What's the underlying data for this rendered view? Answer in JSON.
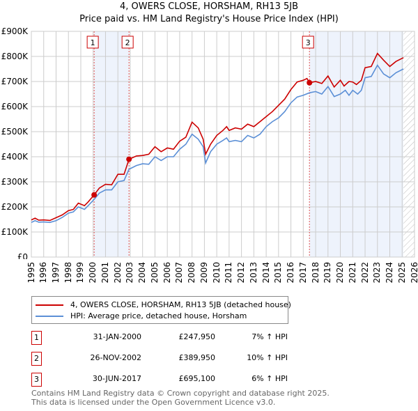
{
  "title": "4, OWERS CLOSE, HORSHAM, RH13 5JB",
  "subtitle": "Price paid vs. HM Land Registry's House Price Index (HPI)",
  "chart_data": {
    "type": "line",
    "ylim": [
      0,
      900000
    ],
    "xlim": [
      1995,
      2026
    ],
    "y_ticks": [
      {
        "v": 0,
        "label": "£0"
      },
      {
        "v": 100000,
        "label": "£100K"
      },
      {
        "v": 200000,
        "label": "£200K"
      },
      {
        "v": 300000,
        "label": "£300K"
      },
      {
        "v": 400000,
        "label": "£400K"
      },
      {
        "v": 500000,
        "label": "£500K"
      },
      {
        "v": 600000,
        "label": "£600K"
      },
      {
        "v": 700000,
        "label": "£700K"
      },
      {
        "v": 800000,
        "label": "£800K"
      },
      {
        "v": 900000,
        "label": "£900K"
      }
    ],
    "x_ticks": [
      "1995",
      "1996",
      "1997",
      "1998",
      "1999",
      "2000",
      "2001",
      "2002",
      "2003",
      "2004",
      "2005",
      "2006",
      "2007",
      "2008",
      "2009",
      "2010",
      "2011",
      "2012",
      "2013",
      "2014",
      "2015",
      "2016",
      "2017",
      "2018",
      "2019",
      "2020",
      "2021",
      "2022",
      "2023",
      "2024",
      "2025",
      "2026"
    ],
    "forecast_from": 2025.1,
    "shaded_periods": [
      [
        2000.08,
        2002.9
      ],
      [
        2017.5,
        2025.1
      ]
    ],
    "series": [
      {
        "name": "4, OWERS CLOSE, HORSHAM, RH13 5JB (detached house)",
        "color": "#cc0000",
        "points": [
          [
            1995,
            148
          ],
          [
            1995.3,
            155
          ],
          [
            1995.6,
            147
          ],
          [
            1996,
            148
          ],
          [
            1996.5,
            146
          ],
          [
            1997,
            157
          ],
          [
            1997.5,
            168
          ],
          [
            1998,
            185
          ],
          [
            1998.4,
            190
          ],
          [
            1998.8,
            215
          ],
          [
            1999.3,
            205
          ],
          [
            1999.6,
            220
          ],
          [
            2000.08,
            248
          ],
          [
            2000.5,
            275
          ],
          [
            2001,
            290
          ],
          [
            2001.5,
            288
          ],
          [
            2002,
            330
          ],
          [
            2002.5,
            330
          ],
          [
            2002.9,
            390
          ],
          [
            2003.5,
            403
          ],
          [
            2004,
            405
          ],
          [
            2004.5,
            410
          ],
          [
            2005,
            440
          ],
          [
            2005.5,
            420
          ],
          [
            2006,
            435
          ],
          [
            2006.5,
            430
          ],
          [
            2007,
            462
          ],
          [
            2007.5,
            478
          ],
          [
            2008,
            538
          ],
          [
            2008.5,
            515
          ],
          [
            2008.9,
            470
          ],
          [
            2009.1,
            410
          ],
          [
            2009.5,
            450
          ],
          [
            2010,
            485
          ],
          [
            2010.5,
            505
          ],
          [
            2010.8,
            520
          ],
          [
            2011,
            505
          ],
          [
            2011.5,
            515
          ],
          [
            2012,
            510
          ],
          [
            2012.5,
            530
          ],
          [
            2013,
            520
          ],
          [
            2013.5,
            540
          ],
          [
            2014,
            560
          ],
          [
            2014.5,
            580
          ],
          [
            2015,
            605
          ],
          [
            2015.5,
            630
          ],
          [
            2016,
            668
          ],
          [
            2016.5,
            698
          ],
          [
            2017,
            705
          ],
          [
            2017.3,
            712
          ],
          [
            2017.5,
            695
          ],
          [
            2018,
            700
          ],
          [
            2018.5,
            692
          ],
          [
            2019,
            722
          ],
          [
            2019.5,
            678
          ],
          [
            2020,
            705
          ],
          [
            2020.3,
            682
          ],
          [
            2020.7,
            700
          ],
          [
            2021,
            698
          ],
          [
            2021.3,
            688
          ],
          [
            2021.7,
            705
          ],
          [
            2022,
            755
          ],
          [
            2022.5,
            760
          ],
          [
            2023,
            812
          ],
          [
            2023.5,
            785
          ],
          [
            2024,
            760
          ],
          [
            2024.5,
            780
          ],
          [
            2025.1,
            795
          ]
        ]
      },
      {
        "name": "HPI: Average price, detached house, Horsham",
        "color": "#5b8fd6",
        "points": [
          [
            1995,
            138
          ],
          [
            1995.3,
            145
          ],
          [
            1995.6,
            139
          ],
          [
            1996,
            140
          ],
          [
            1996.5,
            138
          ],
          [
            1997,
            145
          ],
          [
            1997.5,
            158
          ],
          [
            1998,
            175
          ],
          [
            1998.4,
            180
          ],
          [
            1998.8,
            200
          ],
          [
            1999.3,
            190
          ],
          [
            1999.6,
            205
          ],
          [
            2000.08,
            230
          ],
          [
            2000.5,
            255
          ],
          [
            2001,
            268
          ],
          [
            2001.5,
            268
          ],
          [
            2002,
            300
          ],
          [
            2002.5,
            305
          ],
          [
            2002.9,
            350
          ],
          [
            2003.5,
            365
          ],
          [
            2004,
            372
          ],
          [
            2004.5,
            370
          ],
          [
            2005,
            400
          ],
          [
            2005.5,
            385
          ],
          [
            2006,
            400
          ],
          [
            2006.5,
            400
          ],
          [
            2007,
            430
          ],
          [
            2007.5,
            450
          ],
          [
            2008,
            490
          ],
          [
            2008.5,
            470
          ],
          [
            2008.9,
            440
          ],
          [
            2009.1,
            375
          ],
          [
            2009.5,
            420
          ],
          [
            2010,
            450
          ],
          [
            2010.5,
            465
          ],
          [
            2010.8,
            475
          ],
          [
            2011,
            460
          ],
          [
            2011.5,
            465
          ],
          [
            2012,
            460
          ],
          [
            2012.5,
            485
          ],
          [
            2013,
            475
          ],
          [
            2013.5,
            490
          ],
          [
            2014,
            520
          ],
          [
            2014.5,
            540
          ],
          [
            2015,
            555
          ],
          [
            2015.5,
            580
          ],
          [
            2016,
            615
          ],
          [
            2016.5,
            638
          ],
          [
            2017,
            645
          ],
          [
            2017.5,
            655
          ],
          [
            2018,
            660
          ],
          [
            2018.5,
            650
          ],
          [
            2019,
            680
          ],
          [
            2019.5,
            640
          ],
          [
            2020,
            650
          ],
          [
            2020.4,
            665
          ],
          [
            2020.7,
            645
          ],
          [
            2021,
            665
          ],
          [
            2021.4,
            650
          ],
          [
            2021.7,
            665
          ],
          [
            2022,
            715
          ],
          [
            2022.5,
            720
          ],
          [
            2023,
            765
          ],
          [
            2023.5,
            730
          ],
          [
            2024,
            715
          ],
          [
            2024.5,
            735
          ],
          [
            2025.1,
            750
          ]
        ]
      }
    ],
    "sales": [
      {
        "id": "1",
        "year": 2000.08,
        "price": 247950,
        "date": "31-JAN-2000",
        "price_label": "£247,950",
        "hpi": "7% ↑ HPI"
      },
      {
        "id": "2",
        "year": 2002.9,
        "price": 389950,
        "date": "26-NOV-2002",
        "price_label": "£389,950",
        "hpi": "10% ↑ HPI"
      },
      {
        "id": "3",
        "year": 2017.5,
        "price": 695100,
        "date": "30-JUN-2017",
        "price_label": "£695,100",
        "hpi": "6% ↑ HPI"
      }
    ]
  },
  "legend": {
    "property": "4, OWERS CLOSE, HORSHAM, RH13 5JB (detached house)",
    "hpi": "HPI: Average price, detached house, Horsham"
  },
  "footer": {
    "line1": "Contains HM Land Registry data © Crown copyright and database right 2025.",
    "line2": "This data is licensed under the Open Government Licence v3.0."
  }
}
